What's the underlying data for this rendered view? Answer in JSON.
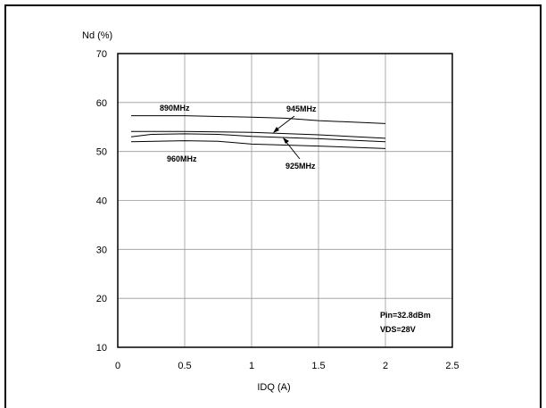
{
  "chart_data": {
    "type": "line",
    "ylabel": "Nd (%)",
    "xlabel": "IDQ (A)",
    "xlim": [
      0,
      2.5
    ],
    "ylim": [
      10,
      70
    ],
    "xticks": [
      0,
      0.5,
      1,
      1.5,
      2,
      2.5
    ],
    "xtick_labels": [
      "0",
      "0.5",
      "1",
      "1.5",
      "2",
      "2.5"
    ],
    "yticks": [
      10,
      20,
      30,
      40,
      50,
      60,
      70
    ],
    "ytick_labels": [
      "10",
      "20",
      "30",
      "40",
      "50",
      "60",
      "70"
    ],
    "grid": true,
    "series": [
      {
        "name": "890MHz",
        "x": [
          0.1,
          0.5,
          1.0,
          1.25,
          1.5,
          2.0
        ],
        "y": [
          57.3,
          57.3,
          57.0,
          56.8,
          56.3,
          55.7
        ]
      },
      {
        "name": "945MHz",
        "x": [
          0.1,
          0.25,
          0.5,
          0.75,
          1.0,
          1.5,
          2.0
        ],
        "y": [
          54.1,
          54.1,
          54.1,
          54.0,
          53.9,
          53.4,
          52.7
        ]
      },
      {
        "name": "925MHz",
        "x": [
          0.1,
          0.25,
          0.5,
          0.75,
          1.0,
          1.5,
          2.0
        ],
        "y": [
          53.0,
          53.5,
          53.6,
          53.5,
          53.1,
          52.6,
          52.0
        ]
      },
      {
        "name": "960MHz",
        "x": [
          0.1,
          0.5,
          0.75,
          1.0,
          1.5,
          2.0
        ],
        "y": [
          52.0,
          52.2,
          52.1,
          51.5,
          51.1,
          50.6
        ]
      }
    ],
    "annotations": [
      "Pin=32.8dBm",
      "VDS=28V"
    ]
  }
}
